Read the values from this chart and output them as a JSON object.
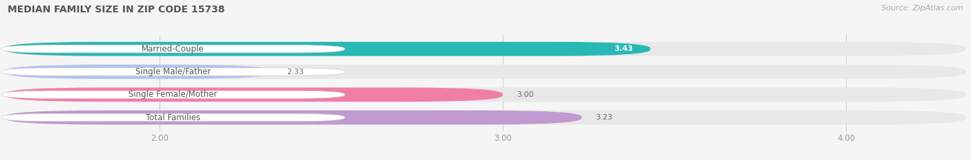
{
  "title": "MEDIAN FAMILY SIZE IN ZIP CODE 15738",
  "source": "Source: ZipAtlas.com",
  "categories": [
    "Married-Couple",
    "Single Male/Father",
    "Single Female/Mother",
    "Total Families"
  ],
  "values": [
    3.43,
    2.33,
    3.0,
    3.23
  ],
  "bar_colors": [
    "#2ab8b5",
    "#b3c3ed",
    "#f07fa8",
    "#c09ad0"
  ],
  "background_color": "#f5f5f5",
  "bar_bg_color": "#e8e8e8",
  "xlim_min": 1.55,
  "xlim_max": 4.35,
  "xticks": [
    2.0,
    3.0,
    4.0
  ],
  "xtick_labels": [
    "2.00",
    "3.00",
    "4.00"
  ],
  "title_fontsize": 10,
  "label_fontsize": 8.5,
  "value_fontsize": 8,
  "source_fontsize": 8
}
